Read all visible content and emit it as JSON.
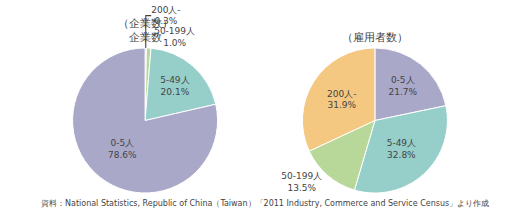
{
  "chart_data": [
    {
      "type": "pie",
      "title": "（企業数）",
      "subtitle": "企業数",
      "categories": [
        "200人-",
        "50-199人",
        "5-49人",
        "0-5人"
      ],
      "values": [
        0.3,
        1.0,
        20.1,
        78.6
      ],
      "value_labels": [
        "0.3%",
        "1.0%",
        "20.1%",
        "78.6%"
      ],
      "colors": [
        "#c8b86a",
        "#b8d89a",
        "#96cfc9",
        "#a9a8c8"
      ],
      "data_labels": true,
      "annotations": [
        "資料：National Statistics, Republic of China（Taiwan）「2011 Industry, Commerce and Service Census」より作成"
      ]
    },
    {
      "type": "pie",
      "title": "（雇用者数）",
      "categories": [
        "0-5人",
        "5-49人",
        "50-199人",
        "200人-"
      ],
      "values": [
        21.7,
        32.8,
        13.5,
        31.9
      ],
      "value_labels": [
        "21.7%",
        "32.8%",
        "13.5%",
        "31.9%"
      ],
      "colors": [
        "#a9a8c8",
        "#96cfc9",
        "#b8d89a",
        "#f5c882"
      ],
      "data_labels": true
    }
  ]
}
